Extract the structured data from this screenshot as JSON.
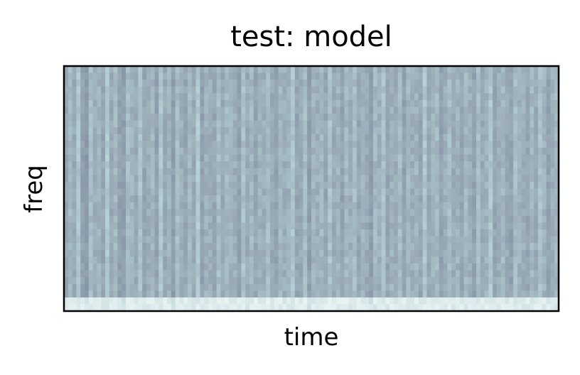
{
  "chart_data": {
    "type": "heatmap",
    "title": "test: model",
    "xlabel": "time",
    "ylabel": "freq",
    "colormap": "bone",
    "colors": {
      "dark": "#7e8aa0",
      "mid": "#98a9b5",
      "light": "#b7d3d6",
      "lightest": "#e8f2f2"
    },
    "x_ticks": "none",
    "y_ticks": "none",
    "grid": false,
    "columns": 120,
    "rows": 36,
    "column_levels": [
      0.35,
      0.55,
      0.4,
      0.7,
      0.3,
      0.2,
      0.6,
      0.45,
      0.5,
      0.35,
      0.75,
      0.4,
      0.55,
      0.3,
      0.25,
      0.6,
      0.5,
      0.4,
      0.65,
      0.35,
      0.45,
      0.55,
      0.3,
      0.7,
      0.4,
      0.5,
      0.25,
      0.6,
      0.45,
      0.35,
      0.55,
      0.4,
      0.75,
      0.3,
      0.5,
      0.45,
      0.35,
      0.6,
      0.4,
      0.55,
      0.5,
      0.45,
      0.3,
      0.65,
      0.4,
      0.55,
      0.35,
      0.5,
      0.45,
      0.6,
      0.4,
      0.3,
      0.55,
      0.45,
      0.5,
      0.7,
      0.35,
      0.4,
      0.6,
      0.25,
      0.5,
      0.45,
      0.55,
      0.35,
      0.65,
      0.4,
      0.5,
      0.3,
      0.55,
      0.45,
      0.6,
      0.35,
      0.5,
      0.4,
      0.25,
      0.55,
      0.45,
      0.65,
      0.35,
      0.5,
      0.4,
      0.6,
      0.3,
      0.55,
      0.45,
      0.5,
      0.35,
      0.7,
      0.4,
      0.5,
      0.55,
      0.3,
      0.45,
      0.6,
      0.4,
      0.5,
      0.35,
      0.55,
      0.45,
      0.3,
      0.6,
      0.4,
      0.5,
      0.7,
      0.35,
      0.45,
      0.55,
      0.4,
      0.3,
      0.6,
      0.5,
      0.45,
      0.35,
      0.55,
      0.4,
      0.65,
      0.5,
      0.3,
      0.45,
      0.55
    ]
  }
}
